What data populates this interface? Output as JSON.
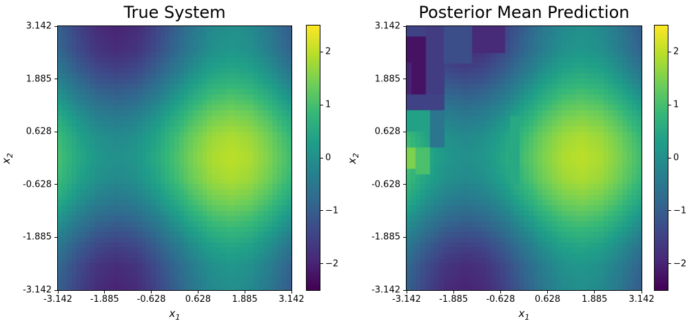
{
  "figure": {
    "background": "#ffffff"
  },
  "panels": [
    {
      "title": "True System",
      "xlabel": {
        "base": "x",
        "sub": "1"
      },
      "ylabel": {
        "base": "x",
        "sub": "2"
      },
      "xtick_labels": [
        "-3.142",
        "-1.885",
        "-0.628",
        "0.628",
        "1.885",
        "3.142"
      ],
      "ytick_labels": [
        "3.142",
        "1.885",
        "0.628",
        "-0.628",
        "-1.885",
        "-3.142"
      ],
      "colorbar_tick_labels": [
        "2",
        "1",
        "0",
        "−1",
        "−2"
      ]
    },
    {
      "title": "Posterior Mean Prediction",
      "xlabel": {
        "base": "x",
        "sub": "1"
      },
      "ylabel": {
        "base": "x",
        "sub": "2"
      },
      "xtick_labels": [
        "-3.142",
        "-1.885",
        "-0.628",
        "0.628",
        "1.885",
        "3.142"
      ],
      "ytick_labels": [
        "3.142",
        "1.885",
        "0.628",
        "-0.628",
        "-1.885",
        "-3.142"
      ],
      "colorbar_tick_labels": [
        "2",
        "1",
        "0",
        "−1",
        "−2"
      ]
    }
  ],
  "chart_data": [
    {
      "type": "heatmap",
      "title": "True System",
      "xlabel": "x_1",
      "ylabel": "x_2",
      "x_range": [
        -3.142,
        3.142
      ],
      "y_range": [
        -3.142,
        3.142
      ],
      "xticks": [
        -3.142,
        -1.885,
        -0.628,
        0.628,
        1.885,
        3.142
      ],
      "yticks": [
        3.142,
        1.885,
        0.628,
        -0.628,
        -1.885,
        -3.142
      ],
      "colorbar_ticks": [
        2,
        1,
        0,
        -1,
        -2
      ],
      "vmin": -2.5,
      "vmax": 2.5,
      "colormap": "viridis",
      "grid_x": [
        -3.142,
        -2.618,
        -2.094,
        -1.571,
        -1.047,
        -0.524,
        0.0,
        0.524,
        1.047,
        1.571,
        2.094,
        2.618,
        3.142
      ],
      "grid_y": [
        3.142,
        2.618,
        2.094,
        1.571,
        1.047,
        0.524,
        0.0,
        -0.524,
        -1.047,
        -1.571,
        -2.094,
        -2.618,
        -3.142
      ],
      "grid": [
        [
          -1.0,
          -1.5,
          -1.87,
          -2.0,
          -1.87,
          -1.5,
          -1.0,
          -0.5,
          -0.13,
          0.0,
          -0.13,
          -0.5,
          -1.0
        ],
        [
          -0.87,
          -1.37,
          -1.74,
          -1.87,
          -1.74,
          -1.37,
          -0.87,
          -0.37,
          0.0,
          0.13,
          0.0,
          -0.37,
          -0.87
        ],
        [
          -0.5,
          -1.0,
          -1.37,
          -1.5,
          -1.37,
          -1.0,
          -0.5,
          0.0,
          0.37,
          0.5,
          0.37,
          0.0,
          -0.5
        ],
        [
          0.0,
          -0.5,
          -0.87,
          -1.0,
          -0.87,
          -0.5,
          0.0,
          0.5,
          0.87,
          1.0,
          0.87,
          0.5,
          0.0
        ],
        [
          0.5,
          0.0,
          -0.37,
          -0.5,
          -0.37,
          0.0,
          0.5,
          1.0,
          1.37,
          1.5,
          1.37,
          1.0,
          0.5
        ],
        [
          0.87,
          0.37,
          0.0,
          -0.13,
          0.0,
          0.37,
          0.87,
          1.37,
          1.74,
          1.87,
          1.74,
          1.37,
          0.87
        ],
        [
          1.0,
          0.5,
          0.13,
          0.0,
          0.13,
          0.5,
          1.0,
          1.5,
          1.87,
          2.0,
          1.87,
          1.5,
          1.0
        ],
        [
          0.87,
          0.37,
          0.0,
          -0.13,
          0.0,
          0.37,
          0.87,
          1.37,
          1.74,
          1.87,
          1.74,
          1.37,
          0.87
        ],
        [
          0.5,
          0.0,
          -0.37,
          -0.5,
          -0.37,
          0.0,
          0.5,
          1.0,
          1.37,
          1.5,
          1.37,
          1.0,
          0.5
        ],
        [
          0.0,
          -0.5,
          -0.87,
          -1.0,
          -0.87,
          -0.5,
          0.0,
          0.5,
          0.87,
          1.0,
          0.87,
          0.5,
          0.0
        ],
        [
          -0.5,
          -1.0,
          -1.37,
          -1.5,
          -1.37,
          -1.0,
          -0.5,
          0.0,
          0.37,
          0.5,
          0.37,
          0.0,
          -0.5
        ],
        [
          -0.87,
          -1.37,
          -1.74,
          -1.87,
          -1.74,
          -1.37,
          -0.87,
          -0.37,
          0.0,
          0.13,
          0.0,
          -0.37,
          -0.87
        ],
        [
          -1.0,
          -1.5,
          -1.87,
          -2.0,
          -1.87,
          -1.5,
          -1.0,
          -0.5,
          -0.13,
          0.0,
          -0.13,
          -0.5,
          -1.0
        ]
      ]
    },
    {
      "type": "heatmap",
      "title": "Posterior Mean Prediction",
      "xlabel": "x_1",
      "ylabel": "x_2",
      "x_range": [
        -3.142,
        3.142
      ],
      "y_range": [
        -3.142,
        3.142
      ],
      "xticks": [
        -3.142,
        -1.885,
        -0.628,
        0.628,
        1.885,
        3.142
      ],
      "yticks": [
        3.142,
        1.885,
        0.628,
        -0.628,
        -1.885,
        -3.142
      ],
      "colorbar_ticks": [
        2,
        1,
        0,
        -1,
        -2
      ],
      "vmin": -2.5,
      "vmax": 2.5,
      "colormap": "viridis",
      "grid_x": [
        -3.142,
        -2.618,
        -2.094,
        -1.571,
        -1.047,
        -0.524,
        0.0,
        0.524,
        1.047,
        1.571,
        2.094,
        2.618,
        3.142
      ],
      "grid_y": [
        3.142,
        2.618,
        2.094,
        1.571,
        1.047,
        0.524,
        0.0,
        -0.524,
        -1.047,
        -1.571,
        -2.094,
        -2.618,
        -3.142
      ],
      "grid": [
        [
          -1.0,
          -1.5,
          -1.87,
          -2.0,
          -1.87,
          -1.5,
          -1.0,
          -0.5,
          -0.13,
          0.0,
          -0.13,
          -0.5,
          -1.0
        ],
        [
          -0.87,
          -1.37,
          -1.74,
          -1.87,
          -1.74,
          -1.37,
          -0.87,
          -0.37,
          0.0,
          0.13,
          0.0,
          -0.37,
          -0.87
        ],
        [
          -0.5,
          -1.0,
          -1.37,
          -1.5,
          -1.37,
          -1.0,
          -0.5,
          0.0,
          0.37,
          0.5,
          0.37,
          0.0,
          -0.5
        ],
        [
          0.0,
          -0.5,
          -0.87,
          -1.0,
          -0.87,
          -0.5,
          0.0,
          0.5,
          0.87,
          1.0,
          0.87,
          0.5,
          0.0
        ],
        [
          0.5,
          0.0,
          -0.37,
          -0.5,
          -0.37,
          0.0,
          0.5,
          1.0,
          1.37,
          1.5,
          1.37,
          1.0,
          0.5
        ],
        [
          0.87,
          0.37,
          0.0,
          -0.13,
          0.0,
          0.37,
          0.87,
          1.37,
          1.74,
          1.87,
          1.74,
          1.37,
          0.87
        ],
        [
          1.0,
          0.5,
          0.13,
          0.0,
          0.13,
          0.5,
          1.0,
          1.5,
          1.87,
          2.0,
          1.87,
          1.5,
          1.0
        ],
        [
          0.87,
          0.37,
          0.0,
          -0.13,
          0.0,
          0.37,
          0.87,
          1.37,
          1.74,
          1.87,
          1.74,
          1.37,
          0.87
        ],
        [
          0.5,
          0.0,
          -0.37,
          -0.5,
          -0.37,
          0.0,
          0.5,
          1.0,
          1.37,
          1.5,
          1.37,
          1.0,
          0.5
        ],
        [
          0.0,
          -0.5,
          -0.87,
          -1.0,
          -0.87,
          -0.5,
          0.0,
          0.5,
          0.87,
          1.0,
          0.87,
          0.5,
          0.0
        ],
        [
          -0.5,
          -1.0,
          -1.37,
          -1.5,
          -1.37,
          -1.0,
          -0.5,
          0.0,
          0.37,
          0.5,
          0.37,
          0.0,
          -0.5
        ],
        [
          -0.87,
          -1.37,
          -1.74,
          -1.87,
          -1.74,
          -1.37,
          -0.87,
          -0.37,
          0.0,
          0.13,
          0.0,
          -0.37,
          -0.87
        ],
        [
          -1.0,
          -1.5,
          -1.87,
          -2.0,
          -1.87,
          -1.5,
          -1.0,
          -0.5,
          -0.13,
          0.0,
          -0.13,
          -0.5,
          -1.0
        ]
      ],
      "patches": [
        {
          "x": [
            -3.142,
            -2.6
          ],
          "y": [
            2.8,
            3.142
          ],
          "value": -1.5
        },
        {
          "x": [
            -2.64,
            -2.18
          ],
          "y": [
            1.55,
            3.142
          ],
          "value": -1.6
        },
        {
          "x": [
            -3.09,
            -2.64
          ],
          "y": [
            1.55,
            2.85
          ],
          "value": -2.25
        },
        {
          "x": [
            -3.142,
            -3.05
          ],
          "y": [
            1.55,
            2.3
          ],
          "value": -2.0
        },
        {
          "x": [
            -2.18,
            -1.4
          ],
          "y": [
            2.3,
            3.142
          ],
          "value": -1.3
        },
        {
          "x": [
            -1.4,
            -0.45
          ],
          "y": [
            2.55,
            3.142
          ],
          "value": -1.9
        },
        {
          "x": [
            -3.142,
            -2.16
          ],
          "y": [
            1.1,
            1.55
          ],
          "value": -1.5
        },
        {
          "x": [
            -3.142,
            -2.53
          ],
          "y": [
            0.6,
            1.1
          ],
          "value": 0.35
        },
        {
          "x": [
            -2.53,
            -2.11
          ],
          "y": [
            0.2,
            1.1
          ],
          "value": -0.55
        },
        {
          "x": [
            -3.142,
            -2.88
          ],
          "y": [
            -0.3,
            0.27
          ],
          "value": 1.5
        },
        {
          "x": [
            -2.88,
            -2.53
          ],
          "y": [
            -0.35,
            0.3
          ],
          "value": 1.05
        },
        {
          "x": [
            -0.35,
            -0.1
          ],
          "y": [
            -0.6,
            1.0
          ],
          "value": 0.5
        }
      ]
    }
  ]
}
